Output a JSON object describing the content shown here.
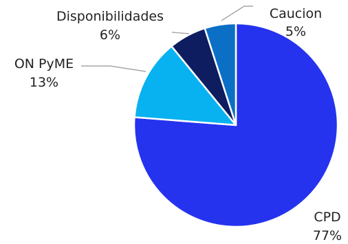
{
  "chart_data": {
    "type": "pie",
    "title": "",
    "slices": [
      {
        "label": "CPD",
        "percent": 77,
        "pct_label": "77%",
        "color": "#2533ee"
      },
      {
        "label": "ON PyME",
        "percent": 13,
        "pct_label": "13%",
        "color": "#08b2f0"
      },
      {
        "label": "Disponibilidades",
        "percent": 6,
        "pct_label": "6%",
        "color": "#0d1d60"
      },
      {
        "label": "Caucion",
        "percent": 5,
        "pct_label": "5%",
        "color": "#0b6fc6"
      }
    ],
    "legend": "none",
    "data_labels": "outside with leader lines"
  }
}
